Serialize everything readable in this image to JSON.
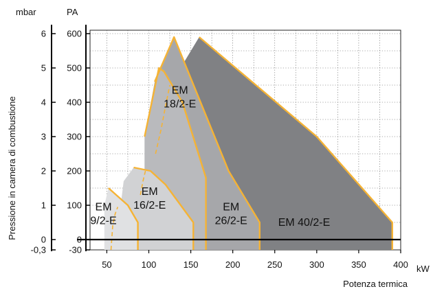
{
  "chart_data": {
    "type": "area",
    "xlabel": "Potenza termica",
    "x_unit": "kW",
    "ylabel": "Pressione in camera di combustione",
    "y_unit_left": "mbar",
    "y_unit_right": "PA",
    "xlim": [
      30,
      400
    ],
    "ylim": [
      -30,
      610
    ],
    "x_ticks": [
      "50",
      "100",
      "150",
      "200",
      "250",
      "300",
      "350",
      "400"
    ],
    "y_ticks_mbar": [
      "-0,3",
      "0",
      "1",
      "2",
      "3",
      "4",
      "5",
      "6"
    ],
    "y_ticks_pa": [
      "-30",
      "0",
      "100",
      "200",
      "300",
      "400",
      "500",
      "600"
    ],
    "grid": true,
    "series": [
      {
        "name": "EM 40/2-E",
        "label_lines": [
          "EM 40/2-E"
        ],
        "fill": "#808184",
        "outline": [
          [
            160,
            590
          ],
          [
            300,
            300
          ],
          [
            390,
            50
          ],
          [
            390,
            -30
          ]
        ],
        "polygon": [
          [
            100,
            250
          ],
          [
            128,
            460
          ],
          [
            160,
            590
          ],
          [
            300,
            300
          ],
          [
            390,
            50
          ],
          [
            390,
            -30
          ],
          [
            100,
            -30
          ]
        ]
      },
      {
        "name": "EM 26/2-E",
        "label_lines": [
          "EM",
          "26/2-E"
        ],
        "fill": "#a6a7aa",
        "outline": [
          [
            107,
            460
          ],
          [
            130,
            590
          ],
          [
            150,
            470
          ],
          [
            195,
            200
          ],
          [
            232,
            50
          ],
          [
            232,
            -30
          ]
        ],
        "polygon": [
          [
            95,
            300
          ],
          [
            107,
            460
          ],
          [
            130,
            590
          ],
          [
            150,
            470
          ],
          [
            195,
            200
          ],
          [
            232,
            50
          ],
          [
            232,
            -30
          ],
          [
            95,
            -30
          ]
        ]
      },
      {
        "name": "EM 18/2-E",
        "label_lines": [
          "EM",
          "18/2-E"
        ],
        "fill": "#b9babd",
        "outline": [
          [
            95,
            300
          ],
          [
            112,
            500
          ],
          [
            118,
            490
          ],
          [
            140,
            400
          ],
          [
            168,
            180
          ],
          [
            168,
            -30
          ]
        ],
        "dashed": [
          [
            108,
            250
          ],
          [
            115,
            325
          ],
          [
            120,
            390
          ],
          [
            125,
            450
          ]
        ],
        "polygon": [
          [
            95,
            300
          ],
          [
            112,
            500
          ],
          [
            118,
            490
          ],
          [
            140,
            400
          ],
          [
            168,
            180
          ],
          [
            168,
            -30
          ],
          [
            95,
            -30
          ]
        ]
      },
      {
        "name": "EM 16/2-E",
        "label_lines": [
          "EM",
          "16/2-E"
        ],
        "fill": "#d1d2d4",
        "outline": [
          [
            82,
            210
          ],
          [
            102,
            200
          ],
          [
            120,
            160
          ],
          [
            153,
            50
          ],
          [
            153,
            -30
          ]
        ],
        "dashed": [
          [
            90,
            130
          ],
          [
            93,
            170
          ],
          [
            96,
            200
          ]
        ],
        "polygon": [
          [
            70,
            170
          ],
          [
            82,
            210
          ],
          [
            102,
            200
          ],
          [
            120,
            160
          ],
          [
            153,
            50
          ],
          [
            153,
            -30
          ],
          [
            60,
            -30
          ]
        ]
      },
      {
        "name": "EM 9/2-E",
        "label_lines": [
          "EM",
          "9/2-E"
        ],
        "fill": "#e0e1e3",
        "outline": [
          [
            52,
            150
          ],
          [
            75,
            100
          ],
          [
            87,
            50
          ],
          [
            87,
            -30
          ]
        ],
        "dashed": [
          [
            55,
            -30
          ],
          [
            57,
            40
          ],
          [
            60,
            75
          ],
          [
            63,
            95
          ]
        ],
        "polygon": [
          [
            47,
            100
          ],
          [
            52,
            150
          ],
          [
            75,
            100
          ],
          [
            87,
            50
          ],
          [
            87,
            -30
          ],
          [
            47,
            -30
          ]
        ]
      }
    ],
    "label_positions_data": []
  },
  "colors": {
    "outline": "#f5b335",
    "grid": "#555555",
    "axis": "#000000",
    "background": "#ffffff"
  }
}
